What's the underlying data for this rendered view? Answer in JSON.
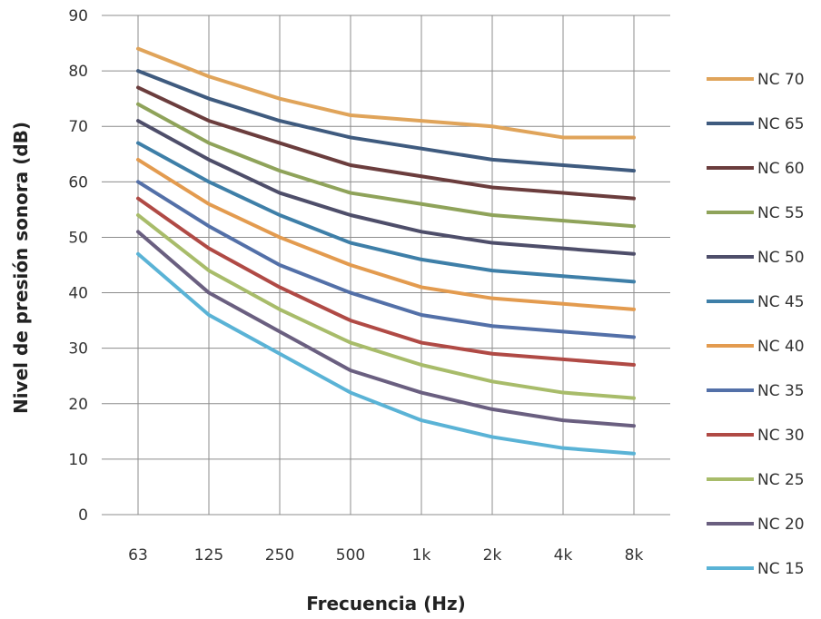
{
  "chart_data": {
    "type": "line",
    "xlabel": "Frecuencia (Hz)",
    "ylabel": "Nivel de presión sonora (dB)",
    "categories": [
      "63",
      "125",
      "250",
      "500",
      "1k",
      "2k",
      "4k",
      "8k"
    ],
    "ylim": [
      0,
      90
    ],
    "yticks": [
      0,
      10,
      20,
      30,
      40,
      50,
      60,
      70,
      80,
      90
    ],
    "grid": true,
    "legend_position": "right",
    "series": [
      {
        "name": "NC 70",
        "color": "#E0A45A",
        "values": [
          84,
          79,
          75,
          72,
          71,
          70,
          68,
          68
        ]
      },
      {
        "name": "NC 65",
        "color": "#3F5B7F",
        "values": [
          80,
          75,
          71,
          68,
          66,
          64,
          63,
          62
        ]
      },
      {
        "name": "NC 60",
        "color": "#6B3D3D",
        "values": [
          77,
          71,
          67,
          63,
          61,
          59,
          58,
          57
        ]
      },
      {
        "name": "NC 55",
        "color": "#8FA35A",
        "values": [
          74,
          67,
          62,
          58,
          56,
          54,
          53,
          52
        ]
      },
      {
        "name": "NC 50",
        "color": "#4E4E6A",
        "values": [
          71,
          64,
          58,
          54,
          51,
          49,
          48,
          47
        ]
      },
      {
        "name": "NC 45",
        "color": "#3E7FA8",
        "values": [
          67,
          60,
          54,
          49,
          46,
          44,
          43,
          42
        ]
      },
      {
        "name": "NC 40",
        "color": "#E39B4F",
        "values": [
          64,
          56,
          50,
          45,
          41,
          39,
          38,
          37
        ]
      },
      {
        "name": "NC 35",
        "color": "#5370A8",
        "values": [
          60,
          52,
          45,
          40,
          36,
          34,
          33,
          32
        ]
      },
      {
        "name": "NC 30",
        "color": "#B04A45",
        "values": [
          57,
          48,
          41,
          35,
          31,
          29,
          28,
          27
        ]
      },
      {
        "name": "NC 25",
        "color": "#A8BC6A",
        "values": [
          54,
          44,
          37,
          31,
          27,
          24,
          22,
          21
        ]
      },
      {
        "name": "NC 20",
        "color": "#6A5F80",
        "values": [
          51,
          40,
          33,
          26,
          22,
          19,
          17,
          16
        ]
      },
      {
        "name": "NC 15",
        "color": "#5AB3D6",
        "values": [
          47,
          36,
          29,
          22,
          17,
          14,
          12,
          11
        ]
      }
    ]
  }
}
